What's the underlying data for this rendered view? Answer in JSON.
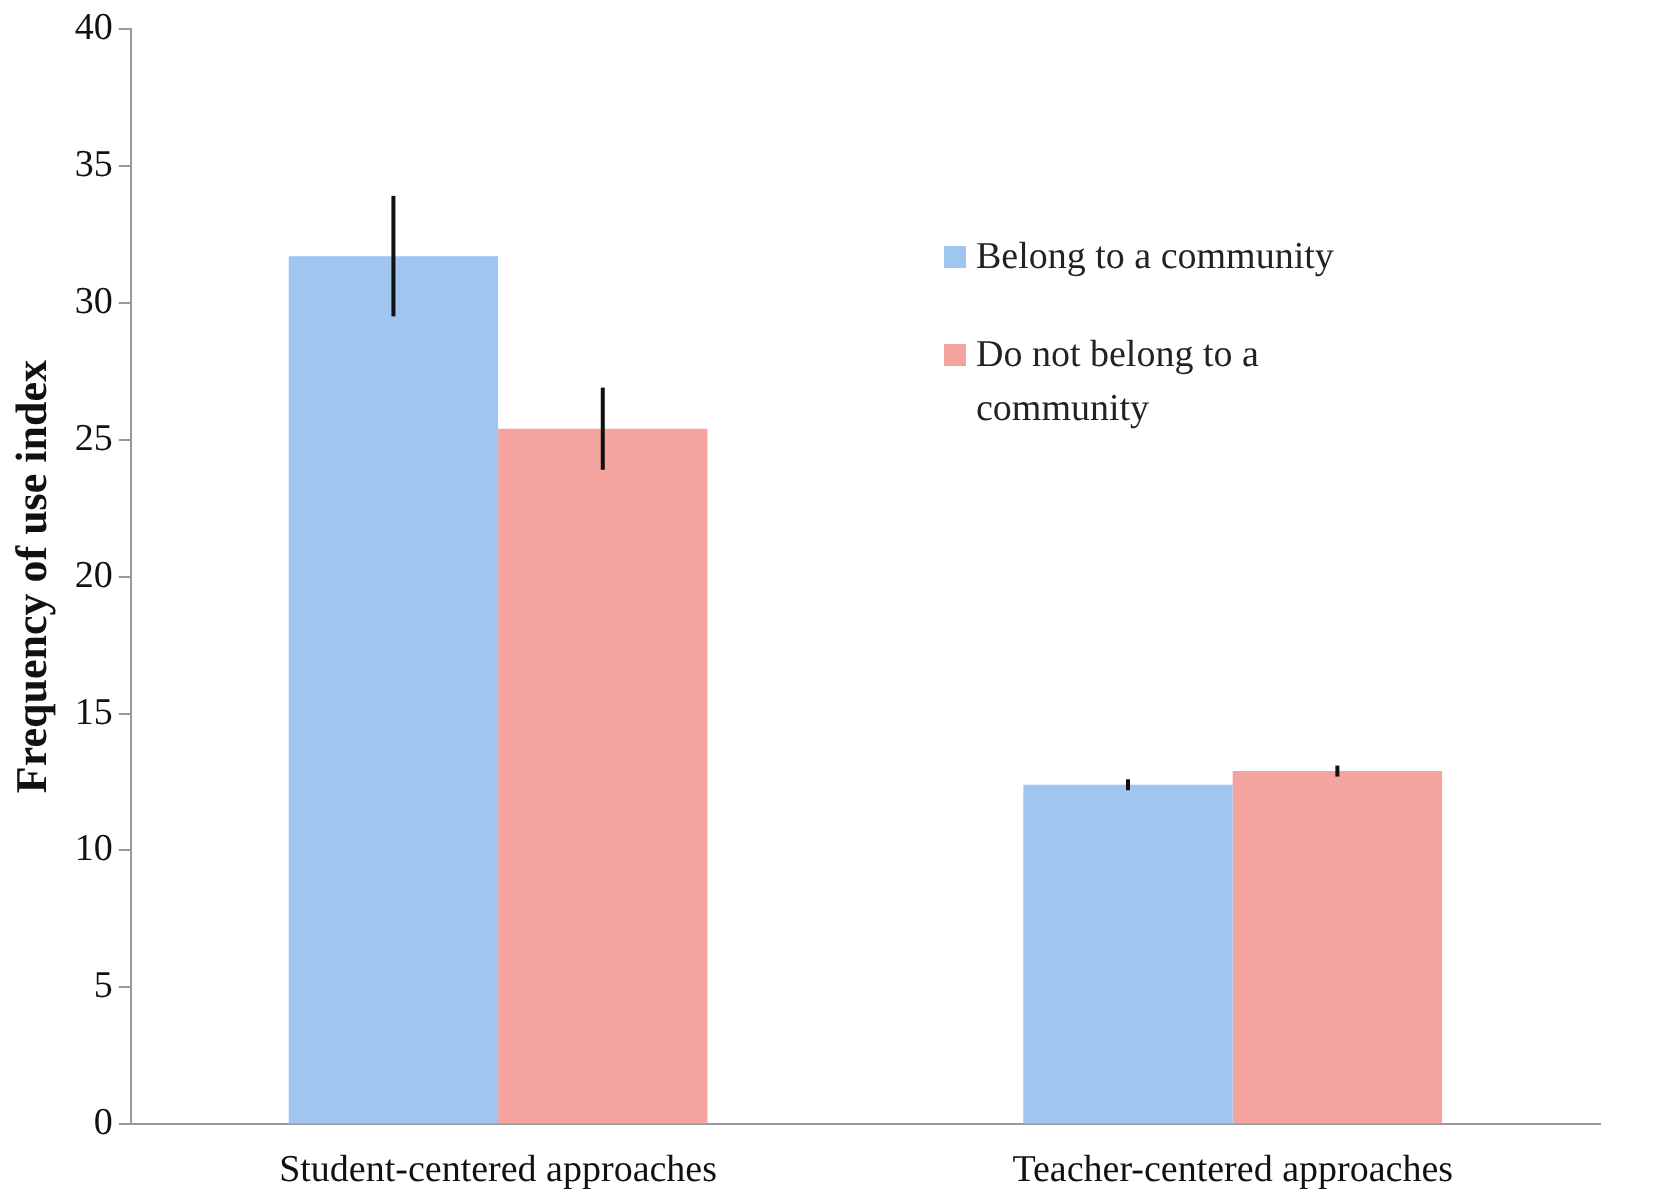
{
  "chart_data": {
    "type": "bar",
    "ylabel": "Frequency of use index",
    "categories": [
      "Student-centered approaches",
      "Teacher-centered approaches"
    ],
    "series": [
      {
        "name": "Belong to a community",
        "color": "#9fc5f0",
        "values": [
          31.7,
          12.4
        ],
        "errors": [
          2.2,
          0.2
        ]
      },
      {
        "name": "Do not belong to a community",
        "color": "#f5a39e",
        "values": [
          25.4,
          12.9
        ],
        "errors": [
          1.5,
          0.2
        ]
      }
    ],
    "ylim": [
      0,
      40
    ],
    "yticks": [
      0,
      5,
      10,
      15,
      20,
      25,
      30,
      35,
      40
    ],
    "grid": false,
    "legend": "top right"
  }
}
